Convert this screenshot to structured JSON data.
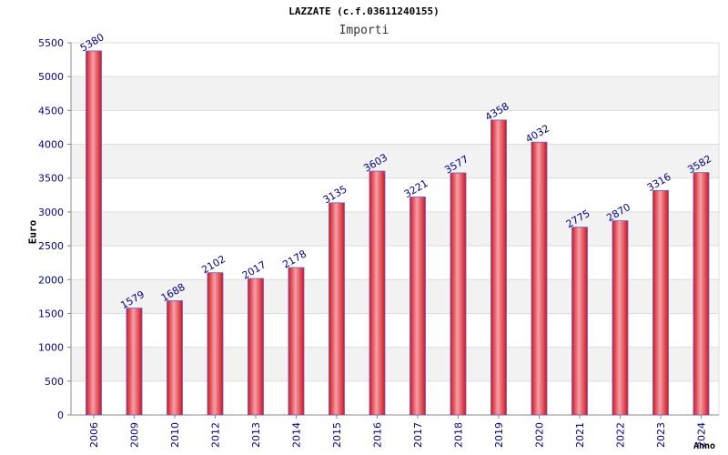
{
  "chart_data": {
    "type": "bar",
    "title": "LAZZATE (c.f.03611240155)",
    "subtitle": "Importi",
    "xlabel": "Anno",
    "ylabel": "Euro",
    "categories": [
      "2006",
      "2009",
      "2010",
      "2012",
      "2013",
      "2014",
      "2015",
      "2016",
      "2017",
      "2018",
      "2019",
      "2020",
      "2021",
      "2022",
      "2023",
      "2024"
    ],
    "values": [
      5380,
      1579,
      1688,
      2102,
      2017,
      2178,
      3135,
      3603,
      3221,
      3577,
      4358,
      4032,
      2775,
      2870,
      3316,
      3582
    ],
    "ylim": [
      0,
      5500
    ],
    "yticks": [
      0,
      500,
      1000,
      1500,
      2000,
      2500,
      3000,
      3500,
      4000,
      4500,
      5000,
      5500
    ],
    "grid": true,
    "colors": {
      "bar_edge": "#d2141e",
      "bar_center": "#f5a0a8",
      "bar_outline": "#6a5acd",
      "band": "#f2f2f2",
      "tick_text": "#00008b"
    }
  }
}
